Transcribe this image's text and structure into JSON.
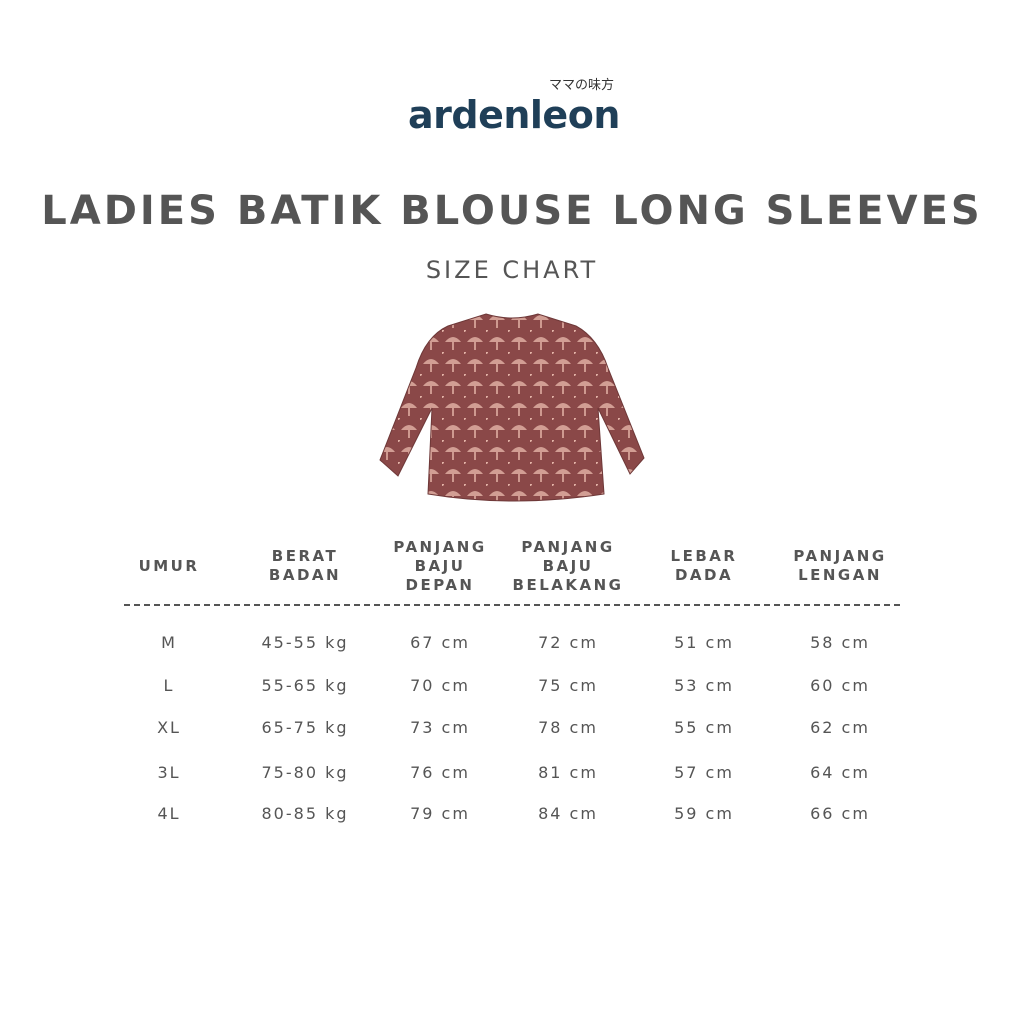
{
  "brand": {
    "name": "ardenleon",
    "tagline": "ママの味方",
    "color": "#1f3f58"
  },
  "title": "LADIES BATIK BLOUSE LONG SLEEVES",
  "subtitle": "SIZE CHART",
  "product_image": {
    "description_icon": "blouse-image",
    "colors": {
      "base": "#8a4848",
      "pattern": "#e4b4a8"
    }
  },
  "table": {
    "headers": [
      [
        "UMUR"
      ],
      [
        "BERAT",
        "BADAN"
      ],
      [
        "PANJANG",
        "BAJU",
        "DEPAN"
      ],
      [
        "PANJANG",
        "BAJU",
        "BELAKANG"
      ],
      [
        "LEBAR",
        "DADA"
      ],
      [
        "PANJANG",
        "LENGAN"
      ]
    ],
    "rows": [
      [
        "M",
        "45-55 kg",
        "67 cm",
        "72 cm",
        "51 cm",
        "58 cm"
      ],
      [
        "L",
        "55-65 kg",
        "70 cm",
        "75 cm",
        "53 cm",
        "60 cm"
      ],
      [
        "XL",
        "65-75 kg",
        "73 cm",
        "78 cm",
        "55 cm",
        "62 cm"
      ],
      [
        "3L",
        "75-80 kg",
        "76 cm",
        "81 cm",
        "57 cm",
        "64 cm"
      ],
      [
        "4L",
        "80-85 kg",
        "79 cm",
        "84 cm",
        "59 cm",
        "66 cm"
      ]
    ]
  }
}
